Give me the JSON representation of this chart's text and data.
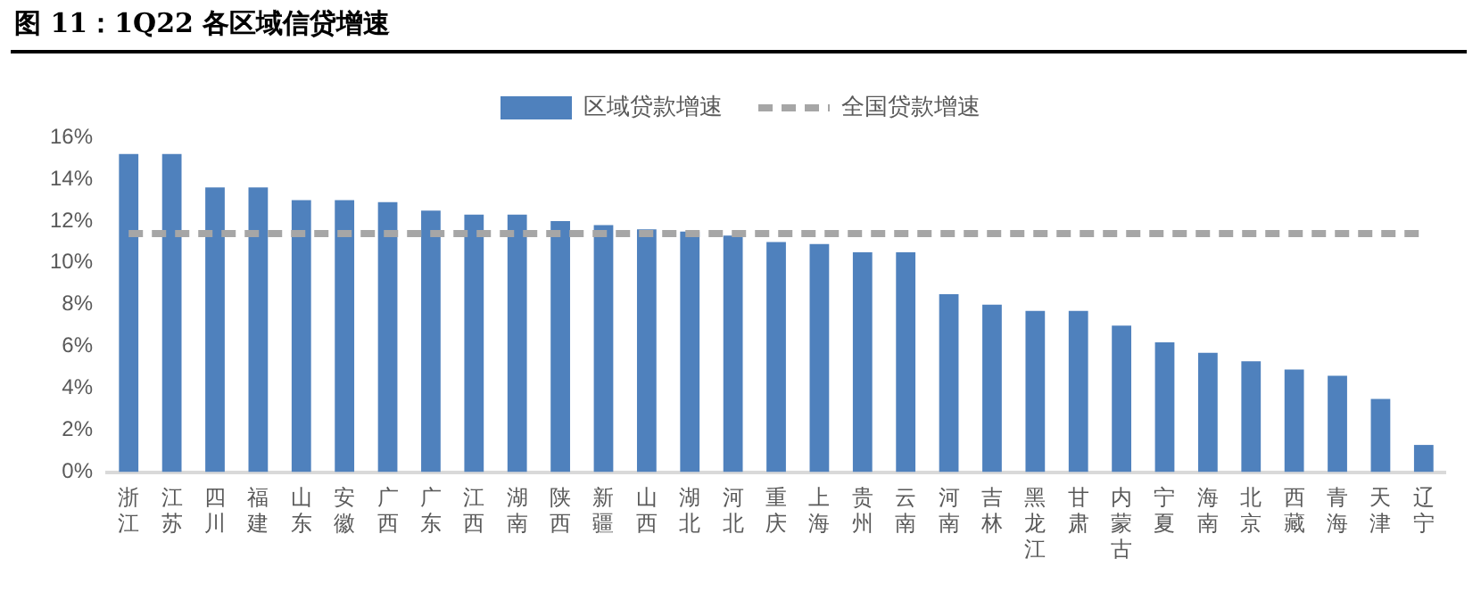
{
  "chart_data": {
    "type": "bar",
    "title": "图 11：1Q22 各区域信贷增速",
    "categories": [
      "浙江",
      "江苏",
      "四川",
      "福建",
      "山东",
      "安徽",
      "广西",
      "广东",
      "江西",
      "湖南",
      "陕西",
      "新疆",
      "山西",
      "湖北",
      "河北",
      "重庆",
      "上海",
      "贵州",
      "云南",
      "河南",
      "吉林",
      "黑龙江",
      "甘肃",
      "内蒙古",
      "宁夏",
      "海南",
      "北京",
      "西藏",
      "青海",
      "天津",
      "辽宁"
    ],
    "series": [
      {
        "name": "区域贷款增速",
        "color": "#4f81bd",
        "values": [
          15.2,
          15.2,
          13.6,
          13.6,
          13.0,
          13.0,
          12.9,
          12.5,
          12.3,
          12.3,
          12.0,
          11.8,
          11.6,
          11.5,
          11.3,
          11.0,
          10.9,
          10.5,
          10.5,
          8.5,
          8.0,
          7.7,
          7.7,
          7.0,
          6.2,
          5.7,
          5.3,
          4.9,
          4.6,
          3.5,
          1.3
        ]
      },
      {
        "name": "全国贷款增速",
        "type": "line",
        "color": "#a6a6a6",
        "line_style": "dashed",
        "marker": "none",
        "values": [
          11.4,
          11.4,
          11.4,
          11.4,
          11.4,
          11.4,
          11.4,
          11.4,
          11.4,
          11.4,
          11.4,
          11.4,
          11.4,
          11.4,
          11.4,
          11.4,
          11.4,
          11.4,
          11.4,
          11.4,
          11.4,
          11.4,
          11.4,
          11.4,
          11.4,
          11.4,
          11.4,
          11.4,
          11.4,
          11.4,
          11.4
        ]
      }
    ],
    "ylim": [
      0,
      16
    ],
    "yticks": [
      {
        "value": 0,
        "label": "0%"
      },
      {
        "value": 2,
        "label": "2%"
      },
      {
        "value": 4,
        "label": "4%"
      },
      {
        "value": 6,
        "label": "6%"
      },
      {
        "value": 8,
        "label": "8%"
      },
      {
        "value": 10,
        "label": "10%"
      },
      {
        "value": 12,
        "label": "12%"
      },
      {
        "value": 14,
        "label": "14%"
      },
      {
        "value": 16,
        "label": "16%"
      }
    ],
    "grid": false,
    "legend": "top"
  }
}
